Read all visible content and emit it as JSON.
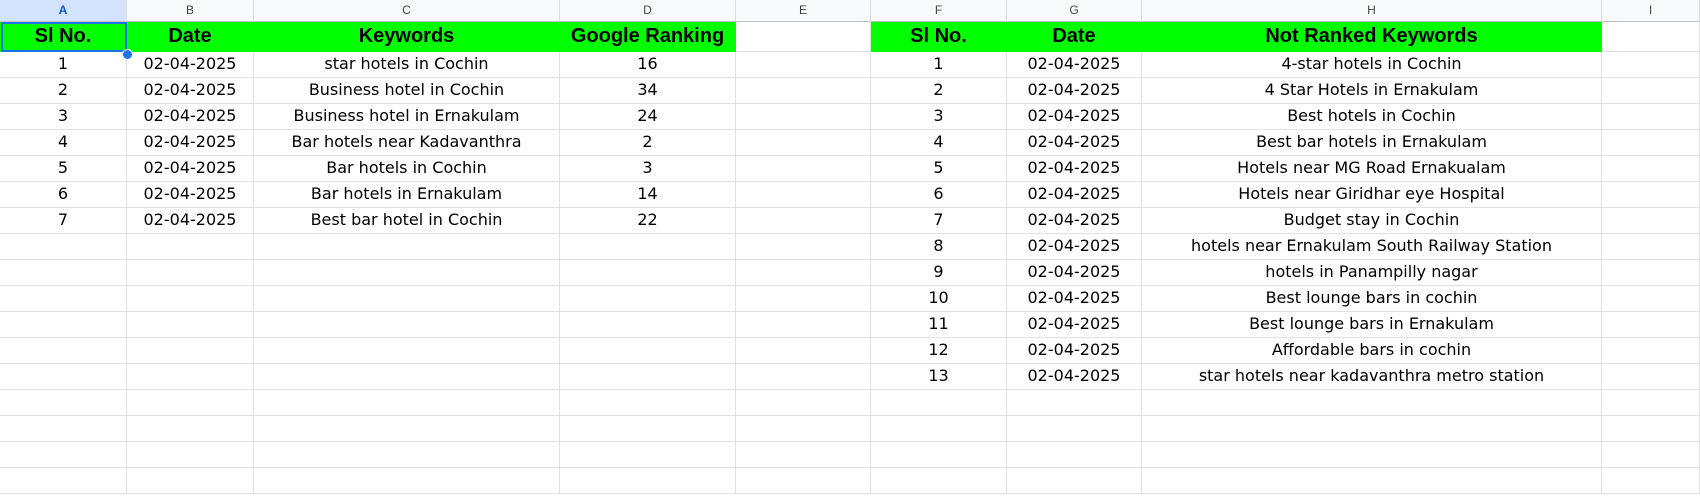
{
  "columns": [
    {
      "letter": "A",
      "selected": true
    },
    {
      "letter": "B",
      "selected": false
    },
    {
      "letter": "C",
      "selected": false
    },
    {
      "letter": "D",
      "selected": false
    },
    {
      "letter": "E",
      "selected": false
    },
    {
      "letter": "F",
      "selected": false
    },
    {
      "letter": "G",
      "selected": false
    },
    {
      "letter": "H",
      "selected": false
    },
    {
      "letter": "I",
      "selected": false
    }
  ],
  "header_fill": "#00ff00",
  "ranked": {
    "headers": [
      "Sl No.",
      "Date",
      "Keywords",
      "Google Ranking"
    ],
    "rows": [
      [
        "1",
        "02-04-2025",
        "star hotels in Cochin",
        "16"
      ],
      [
        "2",
        "02-04-2025",
        "Business hotel in Cochin",
        "34"
      ],
      [
        "3",
        "02-04-2025",
        "Business hotel in Ernakulam",
        "24"
      ],
      [
        "4",
        "02-04-2025",
        "Bar hotels near Kadavanthra",
        "2"
      ],
      [
        "5",
        "02-04-2025",
        "Bar hotels in Cochin",
        "3"
      ],
      [
        "6",
        "02-04-2025",
        "Bar hotels in Ernakulam",
        "14"
      ],
      [
        "7",
        "02-04-2025",
        "Best bar hotel in Cochin",
        "22"
      ]
    ]
  },
  "not_ranked": {
    "headers": [
      "Sl No.",
      "Date",
      "Not Ranked Keywords"
    ],
    "rows": [
      [
        "1",
        "02-04-2025",
        "4-star hotels in Cochin"
      ],
      [
        "2",
        "02-04-2025",
        "4 Star Hotels in Ernakulam"
      ],
      [
        "3",
        "02-04-2025",
        "Best hotels in Cochin"
      ],
      [
        "4",
        "02-04-2025",
        "Best bar hotels in Ernakulam"
      ],
      [
        "5",
        "02-04-2025",
        "Hotels near MG Road Ernakualam"
      ],
      [
        "6",
        "02-04-2025",
        "Hotels near Giridhar eye Hospital"
      ],
      [
        "7",
        "02-04-2025",
        "Budget stay in Cochin"
      ],
      [
        "8",
        "02-04-2025",
        "hotels near Ernakulam South Railway Station"
      ],
      [
        "9",
        "02-04-2025",
        "hotels in Panampilly nagar"
      ],
      [
        "10",
        "02-04-2025",
        "Best lounge bars in cochin"
      ],
      [
        "11",
        "02-04-2025",
        "Best lounge bars in Ernakulam"
      ],
      [
        "12",
        "02-04-2025",
        "Affordable bars in cochin"
      ],
      [
        "13",
        "02-04-2025",
        "star hotels near kadavanthra metro station"
      ]
    ]
  }
}
